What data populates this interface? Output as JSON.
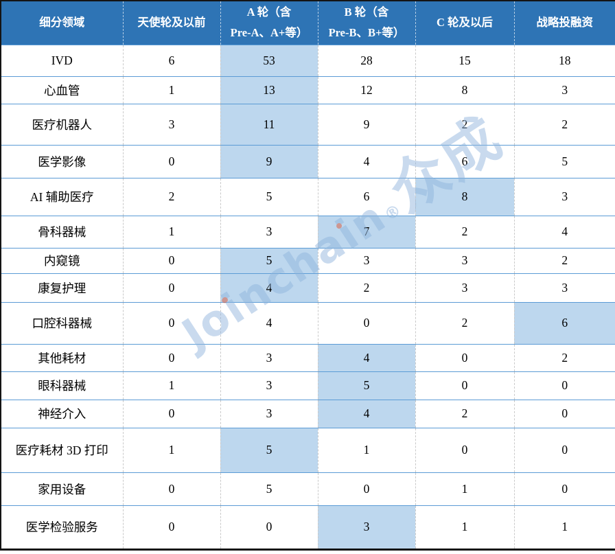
{
  "table": {
    "columns": [
      {
        "id": "segment",
        "label_lines": [
          "细分领域"
        ]
      },
      {
        "id": "angel",
        "label_lines": [
          "天使轮及以前"
        ]
      },
      {
        "id": "series-a",
        "label_lines": [
          "A 轮（含",
          "Pre-A、A+等）"
        ]
      },
      {
        "id": "series-b",
        "label_lines": [
          "B 轮（含",
          "Pre-B、B+等）"
        ]
      },
      {
        "id": "series-c",
        "label_lines": [
          "C 轮及以后"
        ]
      },
      {
        "id": "strategic",
        "label_lines": [
          "战略投融资"
        ]
      }
    ],
    "rows": [
      {
        "label": "IVD",
        "values": [
          6,
          53,
          28,
          15,
          18
        ],
        "highlight_col": 1
      },
      {
        "label": "心血管",
        "values": [
          1,
          13,
          12,
          8,
          3
        ],
        "highlight_col": 1
      },
      {
        "label": "医疗机器人",
        "values": [
          3,
          11,
          9,
          2,
          2
        ],
        "highlight_col": 1
      },
      {
        "label": "医学影像",
        "values": [
          0,
          9,
          4,
          6,
          5
        ],
        "highlight_col": 1
      },
      {
        "label": "AI 辅助医疗",
        "values": [
          2,
          5,
          6,
          8,
          3
        ],
        "highlight_col": 3
      },
      {
        "label": "骨科器械",
        "values": [
          1,
          3,
          7,
          2,
          4
        ],
        "highlight_col": 2
      },
      {
        "label": "内窥镜",
        "values": [
          0,
          5,
          3,
          3,
          2
        ],
        "highlight_col": 1
      },
      {
        "label": "康复护理",
        "values": [
          0,
          4,
          2,
          3,
          3
        ],
        "highlight_col": 1
      },
      {
        "label": "口腔科器械",
        "values": [
          0,
          4,
          0,
          2,
          6
        ],
        "highlight_col": 4
      },
      {
        "label": "其他耗材",
        "values": [
          0,
          3,
          4,
          0,
          2
        ],
        "highlight_col": 2
      },
      {
        "label": "眼科器械",
        "values": [
          1,
          3,
          5,
          0,
          0
        ],
        "highlight_col": 2
      },
      {
        "label": "神经介入",
        "values": [
          0,
          3,
          4,
          2,
          0
        ],
        "highlight_col": 2
      },
      {
        "label": "医疗耗材 3D 打印",
        "values": [
          1,
          5,
          1,
          0,
          0
        ],
        "highlight_col": 1
      },
      {
        "label": "家用设备",
        "values": [
          0,
          5,
          0,
          1,
          0
        ],
        "highlight_col": null
      },
      {
        "label": "医学检验服务",
        "values": [
          0,
          0,
          3,
          1,
          1
        ],
        "highlight_col": 2
      }
    ]
  },
  "watermark": {
    "segments": [
      "Jo",
      "i",
      "ncha",
      "i",
      "n"
    ],
    "reg_mark": "®",
    "cjk": "众成"
  },
  "colors": {
    "header_bg": "#2E74B5",
    "header_text": "#FFFFFF",
    "highlight_bg": "#BDD7EE",
    "row_line": "#5B9BD5",
    "col_dash": "#C9C9C9",
    "outer_border": "#141414",
    "watermark": "#8FB4DC",
    "watermark_accent": "#E0512E"
  },
  "chart_data": {
    "type": "table",
    "title": "",
    "categories": [
      "IVD",
      "心血管",
      "医疗机器人",
      "医学影像",
      "AI 辅助医疗",
      "骨科器械",
      "内窥镜",
      "康复护理",
      "口腔科器械",
      "其他耗材",
      "眼科器械",
      "神经介入",
      "医疗耗材 3D 打印",
      "家用设备",
      "医学检验服务"
    ],
    "row_header_label": "细分领域",
    "series": [
      {
        "name": "天使轮及以前",
        "values": [
          6,
          1,
          3,
          0,
          2,
          1,
          0,
          0,
          0,
          0,
          1,
          0,
          1,
          0,
          0
        ]
      },
      {
        "name": "A 轮（含 Pre-A、A+等）",
        "values": [
          53,
          13,
          11,
          9,
          5,
          3,
          5,
          4,
          4,
          3,
          3,
          3,
          5,
          5,
          0
        ]
      },
      {
        "name": "B 轮（含 Pre-B、B+等）",
        "values": [
          28,
          12,
          9,
          4,
          6,
          7,
          3,
          2,
          0,
          4,
          5,
          4,
          1,
          0,
          3
        ]
      },
      {
        "name": "C 轮及以后",
        "values": [
          15,
          8,
          2,
          6,
          8,
          2,
          3,
          3,
          2,
          0,
          0,
          2,
          0,
          1,
          1
        ]
      },
      {
        "name": "战略投融资",
        "values": [
          18,
          3,
          2,
          5,
          3,
          4,
          2,
          3,
          6,
          2,
          0,
          0,
          0,
          0,
          1
        ]
      }
    ],
    "highlighted_cells_note": "one light-blue highlighted cell per row (max round), none for 家用设备",
    "legend_position": "none",
    "grid": "dashed vertical separators, solid blue horizontal separators"
  }
}
